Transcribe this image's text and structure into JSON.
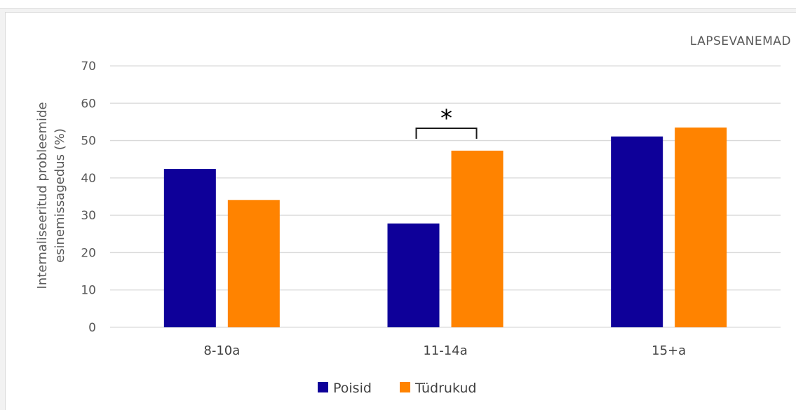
{
  "colors": {
    "series_boys": "#0e0099",
    "series_girls": "#ff8300",
    "grid": "#d9d9d9",
    "bracket": "#1a1a1a"
  },
  "chart_data": {
    "type": "bar",
    "title": "LAPSEVANEMAD",
    "ylabel_lines": [
      "Internaliseeritud probleemide",
      "esinemissagedus (%)"
    ],
    "xlabel": "",
    "categories": [
      "8-10a",
      "11-14a",
      "15+a"
    ],
    "series": [
      {
        "name": "Poisid",
        "values": [
          42.4,
          27.8,
          51.1
        ]
      },
      {
        "name": "Tüdrukud",
        "values": [
          34.1,
          47.3,
          53.5
        ]
      }
    ],
    "ylim": [
      0,
      70
    ],
    "yticks": [
      0,
      10,
      20,
      30,
      40,
      50,
      60,
      70
    ],
    "grid": true,
    "legend_position": "bottom",
    "annotations": [
      {
        "text": "*",
        "category": "11-14a",
        "type": "significance-bracket"
      }
    ]
  }
}
